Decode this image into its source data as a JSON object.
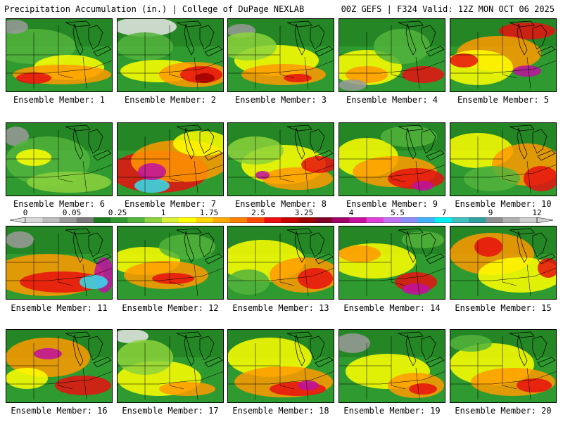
{
  "header": {
    "left": "Precipitation Accumulation (in.) | College of DuPage NEXLAB",
    "right": "00Z GEFS | F324 Valid: 12Z MON OCT 06 2025"
  },
  "legend": {
    "tick_labels": [
      "0",
      "0.05",
      "0.25",
      "1",
      "1.75",
      "2.5",
      "3.25",
      "4",
      "5.5",
      "7",
      "9",
      "12"
    ],
    "colors": [
      "#d8d8d8",
      "#bdbdbd",
      "#9a9a9a",
      "#7a7a7a",
      "#1e7a1e",
      "#2f9a2f",
      "#52b43c",
      "#8cd23c",
      "#d9f03a",
      "#ffff00",
      "#ffd500",
      "#ffaa00",
      "#ff7f00",
      "#ff4a00",
      "#ee1010",
      "#c80000",
      "#9e0000",
      "#80002a",
      "#a0006a",
      "#c8109e",
      "#e040d8",
      "#c070f0",
      "#8a8af8",
      "#40b0f8",
      "#00f0f0",
      "#40c0c0",
      "#30a0a0",
      "#909090",
      "#b0b0b0",
      "#cfcfcf"
    ]
  },
  "members": [
    {
      "label": "Ensemble Member: 1"
    },
    {
      "label": "Ensemble Member: 2"
    },
    {
      "label": "Ensemble Member: 3"
    },
    {
      "label": "Ensemble Member: 4"
    },
    {
      "label": "Ensemble Member: 5"
    },
    {
      "label": "Ensemble Member: 6"
    },
    {
      "label": "Ensemble Member: 7"
    },
    {
      "label": "Ensemble Member: 8"
    },
    {
      "label": "Ensemble Member: 9"
    },
    {
      "label": "Ensemble Member: 10"
    },
    {
      "label": "Ensemble Member: 11"
    },
    {
      "label": "Ensemble Member: 12"
    },
    {
      "label": "Ensemble Member: 13"
    },
    {
      "label": "Ensemble Member: 14"
    },
    {
      "label": "Ensemble Member: 15"
    },
    {
      "label": "Ensemble Member: 16"
    },
    {
      "label": "Ensemble Member: 17"
    },
    {
      "label": "Ensemble Member: 18"
    },
    {
      "label": "Ensemble Member: 19"
    },
    {
      "label": "Ensemble Member: 20"
    }
  ]
}
